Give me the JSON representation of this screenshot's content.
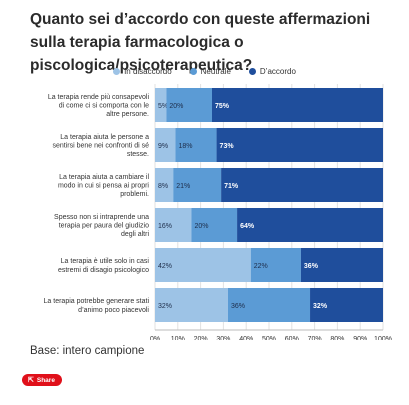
{
  "title": "Quanto sei d’accordo con queste affermazioni sulla terapia farmacologica o piscologica/psicoterapeutica?",
  "base_note": "Base: intero campione",
  "share_label": "Share",
  "colors": {
    "disaccordo": "#9dc3e6",
    "neutrale": "#5b9bd5",
    "accordo": "#1f4e9c"
  },
  "chart_data": {
    "type": "bar",
    "orientation": "horizontal",
    "stacked": true,
    "categories": [
      "La terapia rende più consapevoli di come ci si comporta con le altre persone.",
      "La terapia aiuta le persone a sentirsi bene nei confronti di sé stesse.",
      "La terapia aiuta a cambiare il modo in cui si pensa ai propri problemi.",
      "Spesso non si intraprende una terapia per paura del giudizio degli altri",
      "La terapia è utile solo in casi estremi di disagio psicologico",
      "La terapia potrebbe generare stati d’animo poco piacevoli"
    ],
    "series": [
      {
        "name": "In disaccordo",
        "values": [
          5,
          9,
          8,
          16,
          42,
          32
        ]
      },
      {
        "name": "Neutrale",
        "values": [
          20,
          18,
          21,
          20,
          22,
          36
        ]
      },
      {
        "name": "D’accordo",
        "values": [
          75,
          73,
          71,
          64,
          36,
          32
        ]
      }
    ],
    "data_labels": [
      [
        "5%",
        "20%",
        "75%"
      ],
      [
        "9%",
        "18%",
        "73%"
      ],
      [
        "8%",
        "21%",
        "71%"
      ],
      [
        "16%",
        "20%",
        "64%"
      ],
      [
        "42%",
        "22%",
        "36%"
      ],
      [
        "32%",
        "36%",
        "32%"
      ]
    ],
    "xlim": [
      0,
      100
    ],
    "x_ticks": [
      "0%",
      "10%",
      "20%",
      "30%",
      "40%",
      "50%",
      "60%",
      "70%",
      "80%",
      "90%",
      "100%"
    ],
    "legend_position": "top-center",
    "grid": true
  }
}
